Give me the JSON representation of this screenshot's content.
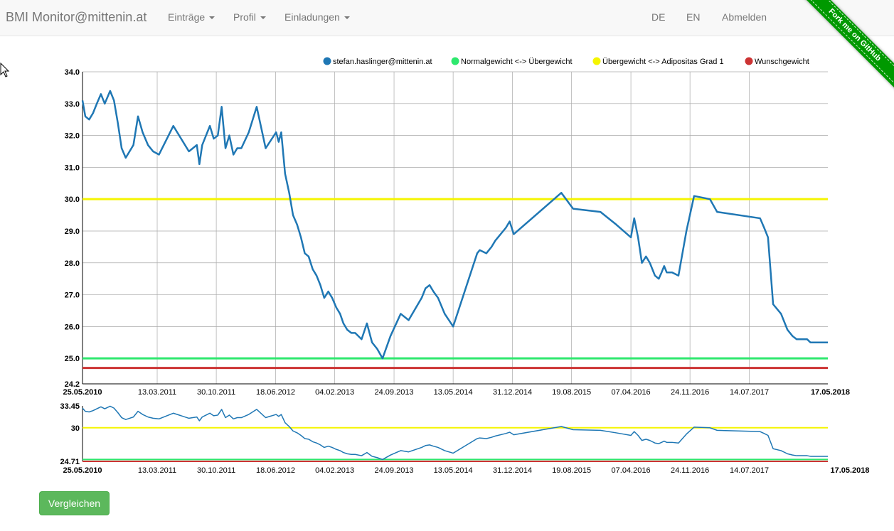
{
  "nav": {
    "brand": "BMI Monitor@mittenin.at",
    "entries": "Einträge",
    "profile": "Profil",
    "invitations": "Einladungen",
    "lang_de": "DE",
    "lang_en": "EN",
    "logout": "Abmelden"
  },
  "ribbon": {
    "label": "Fork me on GitHub"
  },
  "buttons": {
    "compare": "Vergleichen"
  },
  "colors": {
    "series": "#1f77b4",
    "normal": "#2ee86e",
    "overweight": "#f5f500",
    "wish": "#cc3333",
    "ribbon": "#009900",
    "button": "#5cb85c"
  },
  "chart_data": [
    {
      "type": "line",
      "title": "",
      "xlabel": "",
      "ylabel": "",
      "x_axis_type": "date",
      "xlim": [
        "25.05.2010",
        "17.05.2018"
      ],
      "ylim": [
        24.2,
        34.0
      ],
      "grid": true,
      "legend_position": "top-right",
      "x_tick_labels": [
        "25.05.2010",
        "13.03.2011",
        "30.10.2011",
        "18.06.2012",
        "04.02.2013",
        "24.09.2013",
        "13.05.2014",
        "31.12.2014",
        "19.08.2015",
        "07.04.2016",
        "24.11.2016",
        "14.07.2017",
        "17.05.2018"
      ],
      "y_tick_labels": [
        "24.2",
        "25.0",
        "26.0",
        "27.0",
        "28.0",
        "29.0",
        "30.0",
        "31.0",
        "32.0",
        "33.0",
        "34.0"
      ],
      "legend": [
        "stefan.haslinger@mittenin.at",
        "Normalgewicht <-> Übergewicht",
        "Übergewicht <-> Adipositas Grad 1",
        "Wunschgewicht"
      ],
      "series": [
        {
          "name": "stefan.haslinger@mittenin.at",
          "type": "line",
          "x": [
            "2010-05-25",
            "2010-06-05",
            "2010-06-20",
            "2010-07-05",
            "2010-07-20",
            "2010-08-05",
            "2010-08-20",
            "2010-09-10",
            "2010-09-25",
            "2010-10-10",
            "2010-10-25",
            "2010-11-10",
            "2010-11-25",
            "2010-12-10",
            "2010-12-28",
            "2011-01-15",
            "2011-02-05",
            "2011-02-25",
            "2011-03-20",
            "2011-05-15",
            "2011-07-15",
            "2011-08-15",
            "2011-08-25",
            "2011-09-05",
            "2011-09-20",
            "2011-10-05",
            "2011-10-20",
            "2011-11-05",
            "2011-11-20",
            "2011-12-05",
            "2011-12-20",
            "2012-01-05",
            "2012-01-20",
            "2012-02-05",
            "2012-03-05",
            "2012-04-05",
            "2012-05-10",
            "2012-06-20",
            "2012-06-30",
            "2012-07-10",
            "2012-07-25",
            "2012-08-10",
            "2012-08-25",
            "2012-09-10",
            "2012-09-25",
            "2012-10-10",
            "2012-10-25",
            "2012-11-10",
            "2012-11-25",
            "2012-12-10",
            "2012-12-25",
            "2013-01-10",
            "2013-01-25",
            "2013-02-10",
            "2013-02-25",
            "2013-03-10",
            "2013-03-25",
            "2013-04-10",
            "2013-04-25",
            "2013-05-20",
            "2013-06-10",
            "2013-06-30",
            "2013-07-20",
            "2013-08-10",
            "2013-09-10",
            "2013-10-20",
            "2013-11-20",
            "2014-01-10",
            "2014-01-25",
            "2014-02-10",
            "2014-02-25",
            "2014-03-15",
            "2014-04-10",
            "2014-05-13",
            "2014-08-15",
            "2014-08-25",
            "2014-09-20",
            "2014-10-10",
            "2014-10-25",
            "2014-12-05",
            "2014-12-20",
            "2015-01-05",
            "2015-07-10",
            "2015-08-25",
            "2015-12-10",
            "2016-02-10",
            "2016-04-07",
            "2016-04-20",
            "2016-05-05",
            "2016-05-20",
            "2016-06-05",
            "2016-06-20",
            "2016-07-10",
            "2016-07-25",
            "2016-08-05",
            "2016-08-15",
            "2016-08-25",
            "2016-09-15",
            "2016-10-10",
            "2016-11-10",
            "2016-12-10",
            "2017-02-10",
            "2017-03-10",
            "2017-08-25",
            "2017-09-10",
            "2017-09-25",
            "2017-10-15",
            "2017-11-15",
            "2017-12-10",
            "2017-12-30",
            "2018-01-15",
            "2018-02-05",
            "2018-02-25",
            "2018-03-10",
            "2018-03-25",
            "2018-04-10",
            "2018-05-17"
          ],
          "y": [
            33.1,
            32.6,
            32.5,
            32.7,
            33.0,
            33.3,
            33.0,
            33.4,
            33.1,
            32.4,
            31.6,
            31.3,
            31.5,
            31.7,
            32.6,
            32.1,
            31.7,
            31.5,
            31.4,
            32.3,
            31.5,
            31.7,
            31.1,
            31.7,
            32.0,
            32.3,
            31.9,
            32.0,
            32.9,
            31.6,
            32.0,
            31.4,
            31.6,
            31.6,
            32.1,
            32.9,
            31.6,
            32.1,
            31.8,
            32.1,
            30.8,
            30.2,
            29.5,
            29.2,
            28.8,
            28.3,
            28.2,
            27.8,
            27.6,
            27.3,
            26.9,
            27.1,
            26.9,
            26.6,
            26.4,
            26.1,
            25.9,
            25.8,
            25.8,
            25.6,
            26.1,
            25.5,
            25.3,
            25.0,
            25.7,
            26.4,
            26.2,
            26.9,
            27.2,
            27.3,
            27.1,
            26.9,
            26.4,
            26.0,
            28.3,
            28.4,
            28.3,
            28.5,
            28.7,
            29.1,
            29.3,
            28.9,
            30.2,
            29.7,
            29.6,
            29.2,
            28.8,
            29.4,
            28.8,
            28.0,
            28.2,
            28.0,
            27.6,
            27.5,
            27.7,
            27.9,
            27.7,
            27.7,
            27.6,
            29.0,
            30.1,
            30.0,
            29.6,
            29.4,
            29.1,
            28.8,
            26.7,
            26.4,
            25.9,
            25.7,
            25.6,
            25.6,
            25.6,
            25.5,
            25.5,
            25.5,
            25.5
          ]
        },
        {
          "name": "Normalgewicht <-> Übergewicht",
          "type": "constant",
          "value": 25.0
        },
        {
          "name": "Übergewicht <-> Adipositas Grad 1",
          "type": "constant",
          "value": 30.0
        },
        {
          "name": "Wunschgewicht",
          "type": "constant",
          "value": 24.7
        }
      ]
    },
    {
      "type": "line",
      "title": "",
      "xlabel": "",
      "ylabel": "",
      "x_axis_type": "date",
      "xlim": [
        "25.05.2010",
        "17.05.2018"
      ],
      "ylim": [
        24.71,
        33.45
      ],
      "grid": false,
      "x_tick_labels": [
        "25.05.2010",
        "13.03.2011",
        "30.10.2011",
        "18.06.2012",
        "04.02.2013",
        "24.09.2013",
        "13.05.2014",
        "31.12.2014",
        "19.08.2015",
        "07.04.2016",
        "24.11.2016",
        "14.07.2017",
        "17.05.2018"
      ],
      "y_tick_labels": [
        "33.45",
        "30",
        "24.71"
      ],
      "series_ref": "same series as main chart (overview/navigator)"
    }
  ]
}
